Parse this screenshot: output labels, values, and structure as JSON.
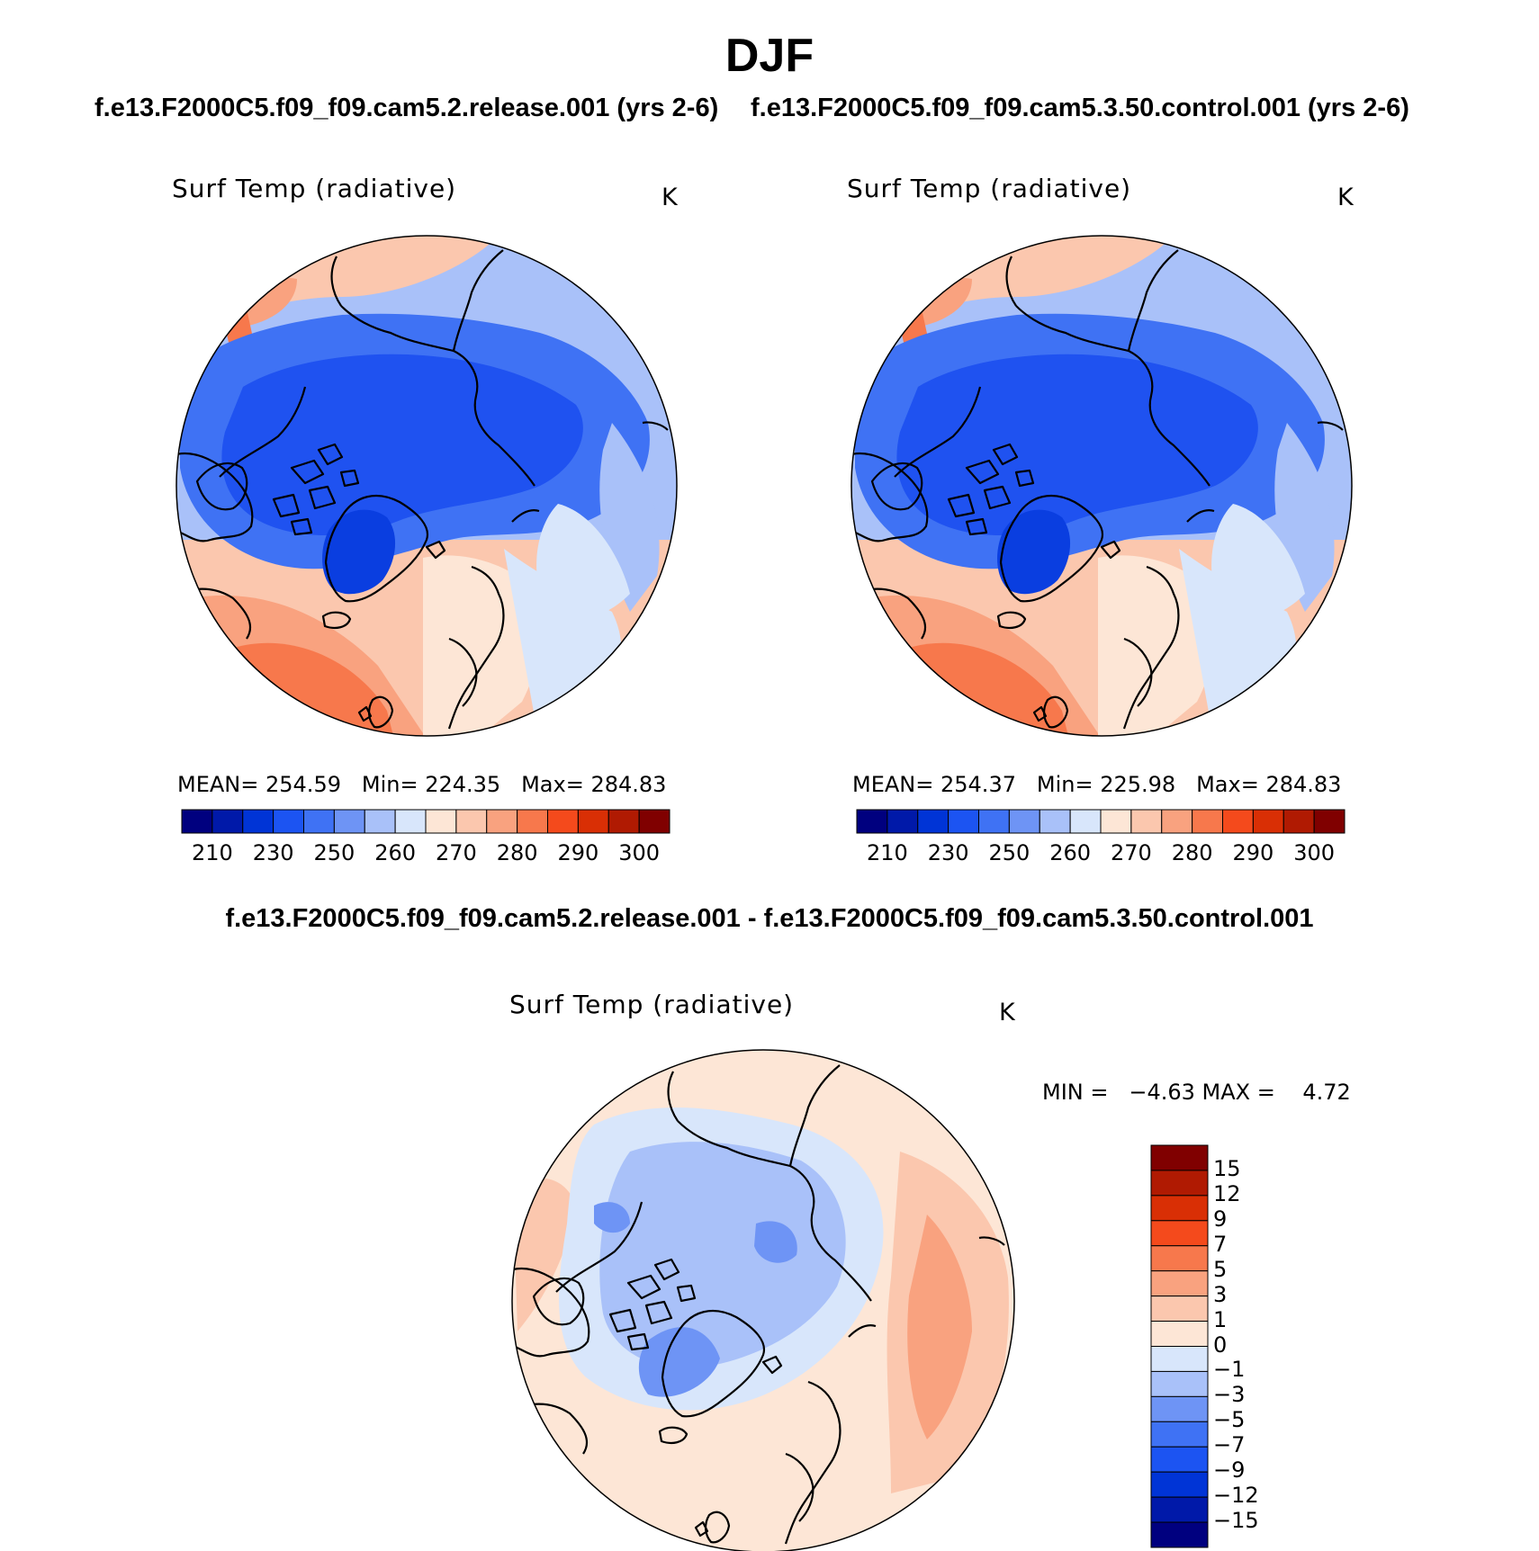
{
  "figure": {
    "season": "DJF",
    "case_a": "f.e13.F2000C5.f09_f09.cam5.2.release.001 (yrs 2-6)",
    "case_b": "f.e13.F2000C5.f09_f09.cam5.3.50.control.001 (yrs 2-6)",
    "diff_title": "f.e13.F2000C5.f09_f09.cam5.2.release.001 - f.e13.F2000C5.f09_f09.cam5.3.50.control.001"
  },
  "panels": [
    {
      "variable": "Surf Temp (radiative)",
      "units": "K",
      "mean_label": "MEAN=",
      "mean": "254.59",
      "min_label": "Min=",
      "min": "224.35",
      "max_label": "Max=",
      "max": "284.83"
    },
    {
      "variable": "Surf Temp (radiative)",
      "units": "K",
      "mean_label": "MEAN=",
      "mean": "254.37",
      "min_label": "Min=",
      "min": "225.98",
      "max_label": "Max=",
      "max": "284.83"
    },
    {
      "variable": "Surf Temp (radiative)",
      "units": "K",
      "minmax_text": "MIN =   −4.63 MAX =    4.72"
    }
  ],
  "colorbar_abs": {
    "tick_labels": [
      "210",
      "230",
      "250",
      "260",
      "270",
      "280",
      "290",
      "300"
    ],
    "colors": [
      "#00007f",
      "#0019a9",
      "#0034d6",
      "#1c54f2",
      "#3f72f4",
      "#6e94f5",
      "#a9c1f9",
      "#d8e6fb",
      "#fde6d6",
      "#fbc7ae",
      "#f9a27f",
      "#f7784c",
      "#f44a1c",
      "#d92f05",
      "#b01a02",
      "#800000"
    ]
  },
  "colorbar_diff": {
    "tick_labels": [
      "15",
      "12",
      "9",
      "7",
      "5",
      "3",
      "1",
      "0",
      "−1",
      "−3",
      "−5",
      "−7",
      "−9",
      "−12",
      "−15"
    ],
    "colors_top_to_bottom": [
      "#800000",
      "#b01a02",
      "#d92f05",
      "#f44a1c",
      "#f7784c",
      "#f9a27f",
      "#fbc7ae",
      "#fde6d6",
      "#d8e6fb",
      "#a9c1f9",
      "#6e94f5",
      "#3f72f4",
      "#1c54f2",
      "#0034d6",
      "#0019a9",
      "#00007f"
    ]
  },
  "map_colors": {
    "pole_blue": "#1f52f0",
    "deep_blue": "#0a3ee0",
    "mid_blue": "#3f72f4",
    "light_blue": "#6e94f5",
    "pale_blue": "#a9c1f9",
    "ice_blue": "#d8e6fb",
    "cream": "#fde6d6",
    "peach": "#fbc7ae",
    "salmon": "#f9a27f",
    "orange": "#f7784c",
    "coastline": "#000000"
  }
}
